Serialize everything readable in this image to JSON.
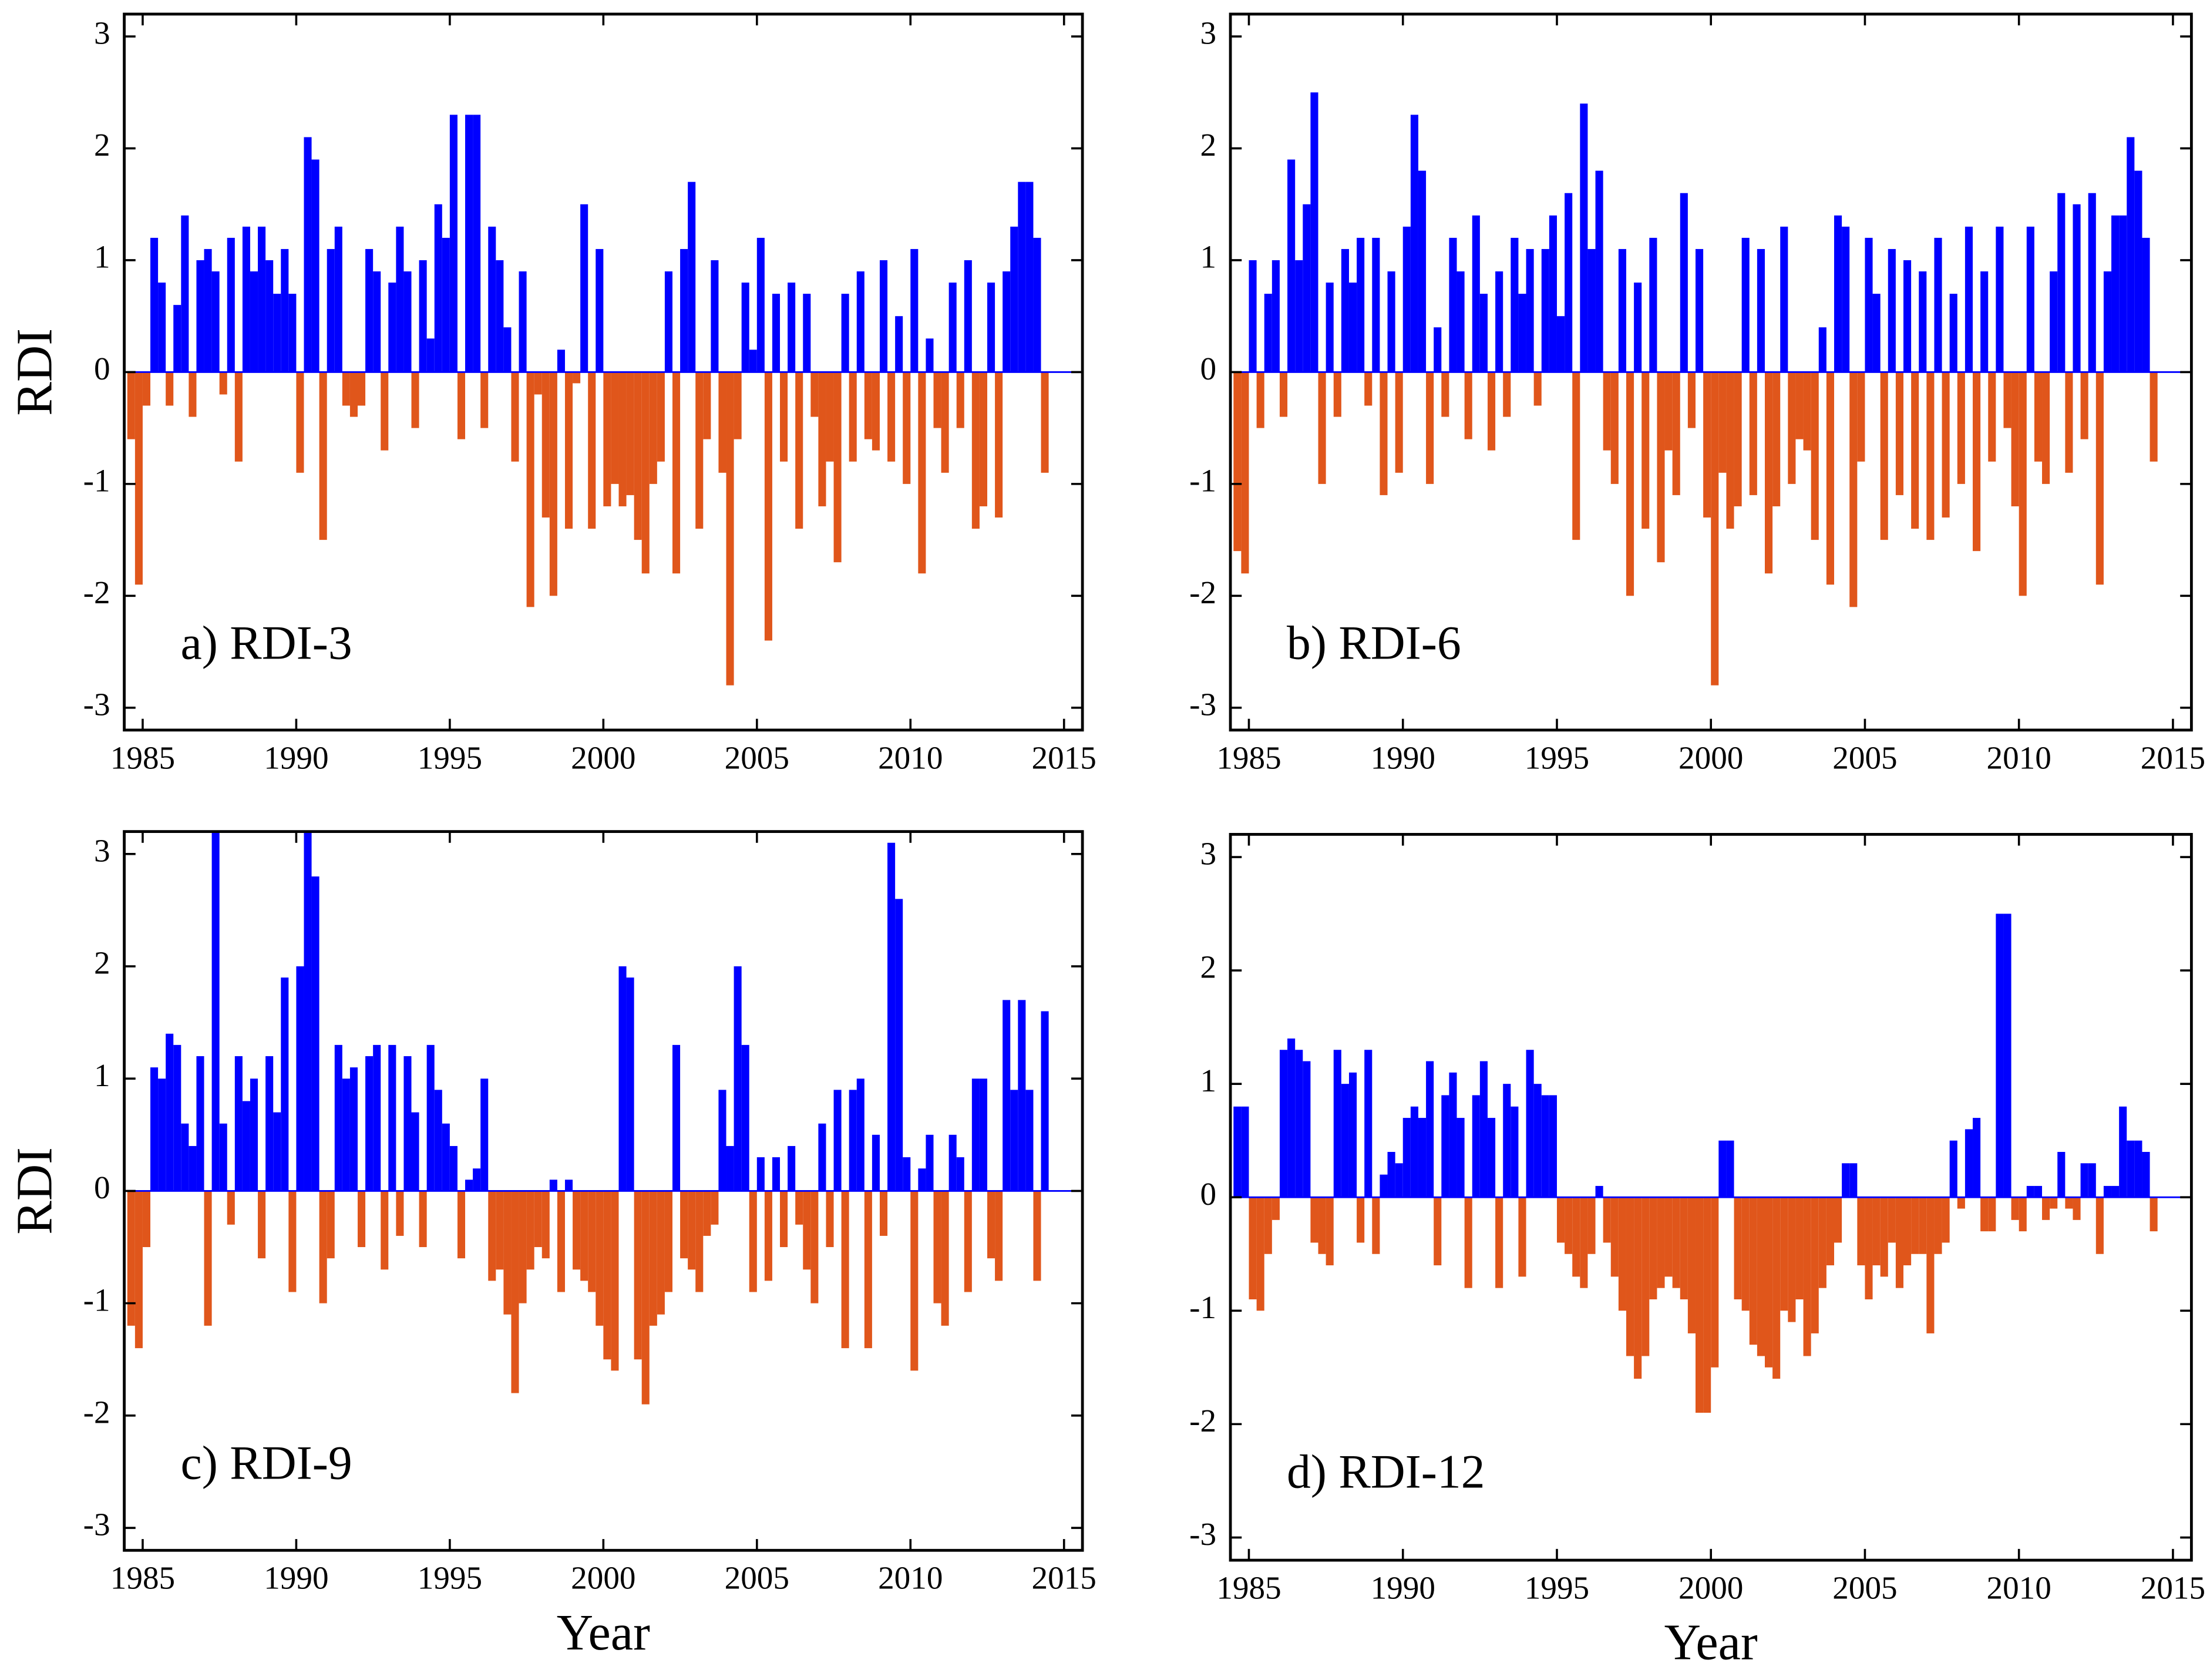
{
  "chart_data": [
    {
      "type": "bar",
      "ylabel": "RDI",
      "annotation": "a) RDI-3",
      "x": [
        1984.5,
        1984.75,
        1985,
        1985.25,
        1985.5,
        1985.75,
        1986,
        1986.25,
        1986.5,
        1986.75,
        1987,
        1987.25,
        1987.5,
        1987.75,
        1988,
        1988.25,
        1988.5,
        1988.75,
        1989,
        1989.25,
        1989.5,
        1989.75,
        1990,
        1990.25,
        1990.5,
        1990.75,
        1991,
        1991.25,
        1991.5,
        1991.75,
        1992,
        1992.25,
        1992.5,
        1992.75,
        1993,
        1993.25,
        1993.5,
        1993.75,
        1994,
        1994.25,
        1994.5,
        1994.75,
        1995,
        1995.25,
        1995.5,
        1995.75,
        1996,
        1996.25,
        1996.5,
        1996.75,
        1997,
        1997.25,
        1997.5,
        1997.75,
        1998,
        1998.25,
        1998.5,
        1998.75,
        1999,
        1999.25,
        1999.5,
        1999.75,
        2000,
        2000.25,
        2000.5,
        2000.75,
        2001,
        2001.25,
        2001.5,
        2001.75,
        2002,
        2002.25,
        2002.5,
        2002.75,
        2003,
        2003.25,
        2003.5,
        2003.75,
        2004,
        2004.25,
        2004.5,
        2004.75,
        2005,
        2005.25,
        2005.5,
        2005.75,
        2006,
        2006.25,
        2006.5,
        2006.75,
        2007,
        2007.25,
        2007.5,
        2007.75,
        2008,
        2008.25,
        2008.5,
        2008.75,
        2009,
        2009.25,
        2009.5,
        2009.75,
        2010,
        2010.25,
        2010.5,
        2010.75,
        2011,
        2011.25,
        2011.5,
        2011.75,
        2012,
        2012.25,
        2012.5,
        2012.75,
        2013,
        2013.25,
        2013.5,
        2013.75,
        2014,
        2014.25
      ],
      "values": [
        -0.6,
        -1.9,
        -0.3,
        1.2,
        0.8,
        -0.3,
        0.6,
        1.4,
        -0.4,
        1.0,
        1.1,
        0.9,
        -0.2,
        1.2,
        -0.8,
        1.3,
        0.9,
        1.3,
        1.0,
        0.7,
        1.1,
        0.7,
        -0.9,
        2.1,
        1.9,
        -1.5,
        1.1,
        1.3,
        -0.3,
        -0.4,
        -0.3,
        1.1,
        0.9,
        -0.7,
        0.8,
        1.3,
        0.9,
        -0.5,
        1.0,
        0.3,
        1.5,
        1.2,
        2.3,
        -0.6,
        2.3,
        2.3,
        -0.5,
        1.3,
        1.0,
        0.4,
        -0.8,
        0.9,
        -2.1,
        -0.2,
        -1.3,
        -2.0,
        0.2,
        -1.4,
        -0.1,
        1.5,
        -1.4,
        1.1,
        -1.2,
        -1.0,
        -1.2,
        -1.1,
        -1.5,
        -1.8,
        -1.0,
        -0.8,
        0.9,
        -1.8,
        1.1,
        1.7,
        -1.4,
        -0.6,
        1.0,
        -0.9,
        -2.8,
        -0.6,
        0.8,
        0.2,
        1.2,
        -2.4,
        0.7,
        -0.8,
        0.8,
        -1.4,
        0.7,
        -0.4,
        -1.2,
        -0.8,
        -1.7,
        0.7,
        -0.8,
        0.9,
        -0.6,
        -0.7,
        1.0,
        -0.8,
        0.5,
        -1.0,
        1.1,
        -1.8,
        0.3,
        -0.5,
        -0.9,
        0.8,
        -0.5,
        1.0,
        -1.4,
        -1.2,
        0.8,
        -1.3,
        0.9,
        1.3,
        1.7,
        1.7,
        1.2,
        -0.9
      ],
      "positive_color": "#0000ff",
      "negative_color": "#e0561b",
      "xlim": [
        1984.4,
        2015.6
      ],
      "xticks": [
        1985,
        1990,
        1995,
        2000,
        2005,
        2010,
        2015
      ],
      "ylim": [
        -3.2,
        3.2
      ],
      "yticks": [
        -3,
        -2,
        -1,
        0,
        1,
        2,
        3
      ]
    },
    {
      "type": "bar",
      "annotation": "b) RDI-6",
      "x": [
        1984.5,
        1984.75,
        1985,
        1985.25,
        1985.5,
        1985.75,
        1986,
        1986.25,
        1986.5,
        1986.75,
        1987,
        1987.25,
        1987.5,
        1987.75,
        1988,
        1988.25,
        1988.5,
        1988.75,
        1989,
        1989.25,
        1989.5,
        1989.75,
        1990,
        1990.25,
        1990.5,
        1990.75,
        1991,
        1991.25,
        1991.5,
        1991.75,
        1992,
        1992.25,
        1992.5,
        1992.75,
        1993,
        1993.25,
        1993.5,
        1993.75,
        1994,
        1994.25,
        1994.5,
        1994.75,
        1995,
        1995.25,
        1995.5,
        1995.75,
        1996,
        1996.25,
        1996.5,
        1996.75,
        1997,
        1997.25,
        1997.5,
        1997.75,
        1998,
        1998.25,
        1998.5,
        1998.75,
        1999,
        1999.25,
        1999.5,
        1999.75,
        2000,
        2000.25,
        2000.5,
        2000.75,
        2001,
        2001.25,
        2001.5,
        2001.75,
        2002,
        2002.25,
        2002.5,
        2002.75,
        2003,
        2003.25,
        2003.5,
        2003.75,
        2004,
        2004.25,
        2004.5,
        2004.75,
        2005,
        2005.25,
        2005.5,
        2005.75,
        2006,
        2006.25,
        2006.5,
        2006.75,
        2007,
        2007.25,
        2007.5,
        2007.75,
        2008,
        2008.25,
        2008.5,
        2008.75,
        2009,
        2009.25,
        2009.5,
        2009.75,
        2010,
        2010.25,
        2010.5,
        2010.75,
        2011,
        2011.25,
        2011.5,
        2011.75,
        2012,
        2012.25,
        2012.5,
        2012.75,
        2013,
        2013.25,
        2013.5,
        2013.75,
        2014,
        2014.25
      ],
      "values": [
        -1.6,
        -1.8,
        1.0,
        -0.5,
        0.7,
        1.0,
        -0.4,
        1.9,
        1.0,
        1.5,
        2.5,
        -1.0,
        0.8,
        -0.4,
        1.1,
        0.8,
        1.2,
        -0.3,
        1.2,
        -1.1,
        0.9,
        -0.9,
        1.3,
        2.3,
        1.8,
        -1.0,
        0.4,
        -0.4,
        1.2,
        0.9,
        -0.6,
        1.4,
        0.7,
        -0.7,
        0.9,
        -0.4,
        1.2,
        0.7,
        1.1,
        -0.3,
        1.1,
        1.4,
        0.5,
        1.6,
        -1.5,
        2.4,
        1.1,
        1.8,
        -0.7,
        -1.0,
        1.1,
        -2.0,
        0.8,
        -1.4,
        1.2,
        -1.7,
        -0.7,
        -1.1,
        1.6,
        -0.5,
        1.1,
        -1.3,
        -2.8,
        -0.9,
        -1.4,
        -1.2,
        1.2,
        -1.1,
        1.1,
        -1.8,
        -1.2,
        1.3,
        -1.0,
        -0.6,
        -0.7,
        -1.5,
        0.4,
        -1.9,
        1.4,
        1.3,
        -2.1,
        -0.8,
        1.2,
        0.7,
        -1.5,
        1.1,
        -1.1,
        1.0,
        -1.4,
        0.9,
        -1.5,
        1.2,
        -1.3,
        0.7,
        -1.0,
        1.3,
        -1.6,
        0.9,
        -0.8,
        1.3,
        -0.5,
        -1.2,
        -2.0,
        1.3,
        -0.8,
        -1.0,
        0.9,
        1.6,
        -0.9,
        1.5,
        -0.6,
        1.6,
        -1.9,
        0.9,
        1.4,
        1.4,
        2.1,
        1.8,
        1.2,
        -0.8
      ],
      "positive_color": "#0000ff",
      "negative_color": "#e0561b",
      "xlim": [
        1984.4,
        2015.6
      ],
      "xticks": [
        1985,
        1990,
        1995,
        2000,
        2005,
        2010,
        2015
      ],
      "ylim": [
        -3.2,
        3.2
      ],
      "yticks": [
        -3,
        -2,
        -1,
        0,
        1,
        2,
        3
      ]
    },
    {
      "type": "bar",
      "ylabel": "RDI",
      "xlabel": "Year",
      "annotation": "c) RDI-9",
      "x": [
        1984.5,
        1984.75,
        1985,
        1985.25,
        1985.5,
        1985.75,
        1986,
        1986.25,
        1986.5,
        1986.75,
        1987,
        1987.25,
        1987.5,
        1987.75,
        1988,
        1988.25,
        1988.5,
        1988.75,
        1989,
        1989.25,
        1989.5,
        1989.75,
        1990,
        1990.25,
        1990.5,
        1990.75,
        1991,
        1991.25,
        1991.5,
        1991.75,
        1992,
        1992.25,
        1992.5,
        1992.75,
        1993,
        1993.25,
        1993.5,
        1993.75,
        1994,
        1994.25,
        1994.5,
        1994.75,
        1995,
        1995.25,
        1995.5,
        1995.75,
        1996,
        1996.25,
        1996.5,
        1996.75,
        1997,
        1997.25,
        1997.5,
        1997.75,
        1998,
        1998.25,
        1998.5,
        1998.75,
        1999,
        1999.25,
        1999.5,
        1999.75,
        2000,
        2000.25,
        2000.5,
        2000.75,
        2001,
        2001.25,
        2001.5,
        2001.75,
        2002,
        2002.25,
        2002.5,
        2002.75,
        2003,
        2003.25,
        2003.5,
        2003.75,
        2004,
        2004.25,
        2004.5,
        2004.75,
        2005,
        2005.25,
        2005.5,
        2005.75,
        2006,
        2006.25,
        2006.5,
        2006.75,
        2007,
        2007.25,
        2007.5,
        2007.75,
        2008,
        2008.25,
        2008.5,
        2008.75,
        2009,
        2009.25,
        2009.5,
        2009.75,
        2010,
        2010.25,
        2010.5,
        2010.75,
        2011,
        2011.25,
        2011.5,
        2011.75,
        2012,
        2012.25,
        2012.5,
        2012.75,
        2013,
        2013.25,
        2013.5,
        2013.75,
        2014,
        2014.25
      ],
      "values": [
        -1.2,
        -1.4,
        -0.5,
        1.1,
        1.0,
        1.4,
        1.3,
        0.6,
        0.4,
        1.2,
        -1.2,
        3.2,
        0.6,
        -0.3,
        1.2,
        0.8,
        1.0,
        -0.6,
        1.2,
        0.7,
        1.9,
        -0.9,
        2.0,
        3.2,
        2.8,
        -1.0,
        -0.6,
        1.3,
        1.0,
        1.1,
        -0.5,
        1.2,
        1.3,
        -0.7,
        1.3,
        -0.4,
        1.2,
        0.7,
        -0.5,
        1.3,
        0.9,
        0.6,
        0.4,
        -0.6,
        0.1,
        0.2,
        1.0,
        -0.8,
        -0.7,
        -1.1,
        -1.8,
        -1.0,
        -0.7,
        -0.5,
        -0.6,
        0.1,
        -0.9,
        0.1,
        -0.7,
        -0.8,
        -0.9,
        -1.2,
        -1.5,
        -1.6,
        2.0,
        1.9,
        -1.5,
        -1.9,
        -1.2,
        -1.1,
        -0.9,
        1.3,
        -0.6,
        -0.7,
        -0.9,
        -0.4,
        -0.3,
        0.9,
        0.4,
        2.0,
        1.3,
        -0.9,
        0.3,
        -0.8,
        0.3,
        -0.5,
        0.4,
        -0.3,
        -0.7,
        -1.0,
        0.6,
        -0.5,
        0.9,
        -1.4,
        0.9,
        1.0,
        -1.4,
        0.5,
        -0.4,
        3.1,
        2.6,
        0.3,
        -1.6,
        0.2,
        0.5,
        -1.0,
        -1.2,
        0.5,
        0.3,
        -0.9,
        1.0,
        1.0,
        -0.6,
        -0.8,
        1.7,
        0.9,
        1.7,
        0.9,
        -0.8,
        1.6
      ],
      "positive_color": "#0000ff",
      "negative_color": "#e0561b",
      "xlim": [
        1984.4,
        2015.6
      ],
      "xticks": [
        1985,
        1990,
        1995,
        2000,
        2005,
        2010,
        2015
      ],
      "ylim": [
        -3.2,
        3.2
      ],
      "yticks": [
        -3,
        -2,
        -1,
        0,
        1,
        2,
        3
      ]
    },
    {
      "type": "bar",
      "xlabel": "Year",
      "annotation": "d) RDI-12",
      "x": [
        1984.5,
        1984.75,
        1985,
        1985.25,
        1985.5,
        1985.75,
        1986,
        1986.25,
        1986.5,
        1986.75,
        1987,
        1987.25,
        1987.5,
        1987.75,
        1988,
        1988.25,
        1988.5,
        1988.75,
        1989,
        1989.25,
        1989.5,
        1989.75,
        1990,
        1990.25,
        1990.5,
        1990.75,
        1991,
        1991.25,
        1991.5,
        1991.75,
        1992,
        1992.25,
        1992.5,
        1992.75,
        1993,
        1993.25,
        1993.5,
        1993.75,
        1994,
        1994.25,
        1994.5,
        1994.75,
        1995,
        1995.25,
        1995.5,
        1995.75,
        1996,
        1996.25,
        1996.5,
        1996.75,
        1997,
        1997.25,
        1997.5,
        1997.75,
        1998,
        1998.25,
        1998.5,
        1998.75,
        1999,
        1999.25,
        1999.5,
        1999.75,
        2000,
        2000.25,
        2000.5,
        2000.75,
        2001,
        2001.25,
        2001.5,
        2001.75,
        2002,
        2002.25,
        2002.5,
        2002.75,
        2003,
        2003.25,
        2003.5,
        2003.75,
        2004,
        2004.25,
        2004.5,
        2004.75,
        2005,
        2005.25,
        2005.5,
        2005.75,
        2006,
        2006.25,
        2006.5,
        2006.75,
        2007,
        2007.25,
        2007.5,
        2007.75,
        2008,
        2008.25,
        2008.5,
        2008.75,
        2009,
        2009.25,
        2009.5,
        2009.75,
        2010,
        2010.25,
        2010.5,
        2010.75,
        2011,
        2011.25,
        2011.5,
        2011.75,
        2012,
        2012.25,
        2012.5,
        2012.75,
        2013,
        2013.25,
        2013.5,
        2013.75,
        2014,
        2014.25
      ],
      "values": [
        0.8,
        0.8,
        -0.9,
        -1.0,
        -0.5,
        -0.2,
        1.3,
        1.4,
        1.3,
        1.2,
        -0.4,
        -0.5,
        -0.6,
        1.3,
        1.0,
        1.1,
        -0.4,
        1.3,
        -0.5,
        0.2,
        0.4,
        0.3,
        0.7,
        0.8,
        0.7,
        1.2,
        -0.6,
        0.9,
        1.1,
        0.7,
        -0.8,
        0.9,
        1.2,
        0.7,
        -0.8,
        1.0,
        0.8,
        -0.7,
        1.3,
        1.0,
        0.9,
        0.9,
        -0.4,
        -0.5,
        -0.7,
        -0.8,
        -0.5,
        0.1,
        -0.4,
        -0.7,
        -1.0,
        -1.4,
        -1.6,
        -1.4,
        -0.9,
        -0.8,
        -0.7,
        -0.8,
        -0.9,
        -1.2,
        -1.9,
        -1.9,
        -1.5,
        0.5,
        0.5,
        -0.9,
        -1.0,
        -1.3,
        -1.4,
        -1.5,
        -1.6,
        -1.0,
        -1.1,
        -0.9,
        -1.4,
        -1.2,
        -0.8,
        -0.6,
        -0.4,
        0.3,
        0.3,
        -0.6,
        -0.9,
        -0.6,
        -0.7,
        -0.4,
        -0.8,
        -0.6,
        -0.5,
        -0.5,
        -1.2,
        -0.5,
        -0.4,
        0.5,
        -0.1,
        0.6,
        0.7,
        -0.3,
        -0.3,
        2.5,
        2.5,
        -0.2,
        -0.3,
        0.1,
        0.1,
        -0.2,
        -0.1,
        0.4,
        -0.1,
        -0.2,
        0.3,
        0.3,
        -0.5,
        0.1,
        0.1,
        0.8,
        0.5,
        0.5,
        0.4,
        -0.3
      ],
      "positive_color": "#0000ff",
      "negative_color": "#e0561b",
      "xlim": [
        1984.4,
        2015.6
      ],
      "xticks": [
        1985,
        1990,
        1995,
        2000,
        2005,
        2010,
        2015
      ],
      "ylim": [
        -3.2,
        3.2
      ],
      "yticks": [
        -3,
        -2,
        -1,
        0,
        1,
        2,
        3
      ]
    }
  ]
}
